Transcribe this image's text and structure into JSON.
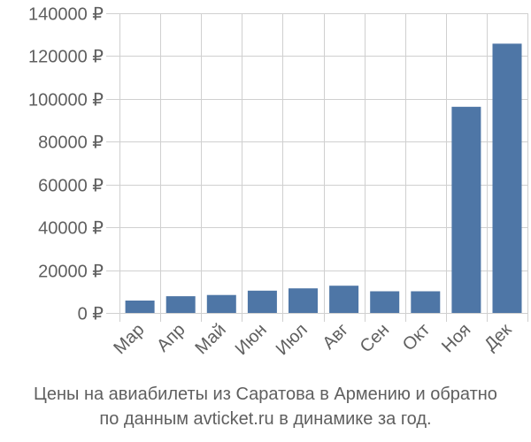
{
  "caption": {
    "line1": "Цены на авиабилеты из Саратова в Армению и обратно",
    "line2": "по данным avticket.ru в динамике за год."
  },
  "colors": {
    "bar": "#4e76a6",
    "grid": "#d0d0d0",
    "axis_text": "#5f5f5f"
  },
  "chart_data": {
    "type": "bar",
    "categories": [
      "Мар",
      "Апр",
      "Май",
      "Июн",
      "Июл",
      "Авг",
      "Сен",
      "Окт",
      "Ноя",
      "Дек"
    ],
    "values": [
      5800,
      7800,
      8400,
      10400,
      11500,
      12700,
      10100,
      10100,
      96300,
      125800
    ],
    "ylim": [
      0,
      140000
    ],
    "yticks": [
      0,
      20000,
      40000,
      60000,
      80000,
      100000,
      120000,
      140000
    ],
    "ytick_labels": [
      "0 ₽",
      "20000 ₽",
      "40000 ₽",
      "60000 ₽",
      "80000 ₽",
      "100000 ₽",
      "120000 ₽",
      "140000 ₽"
    ],
    "grid": true
  }
}
